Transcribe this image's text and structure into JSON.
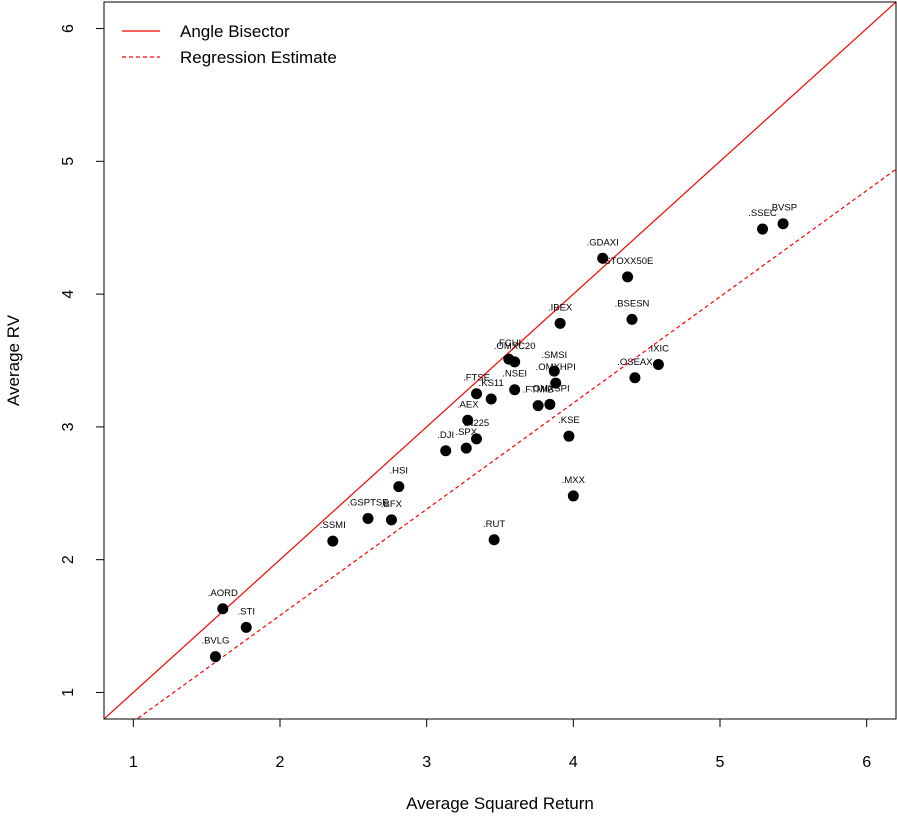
{
  "chart_data": {
    "type": "scatter",
    "title": "",
    "xlabel": "Average Squared Return",
    "ylabel": "Average RV",
    "xlim": [
      0.8,
      6.2
    ],
    "ylim": [
      0.8,
      6.2
    ],
    "xticks": [
      1,
      2,
      3,
      4,
      5,
      6
    ],
    "yticks": [
      1,
      2,
      3,
      4,
      5,
      6
    ],
    "grid": false,
    "legend_position": "top-left",
    "lines": [
      {
        "name": "Angle Bisector",
        "style": "solid",
        "color": "#ff0000",
        "intercept": 0,
        "slope": 1
      },
      {
        "name": "Regression Estimate",
        "style": "dashed",
        "color": "#ff0000",
        "intercept": -0.02,
        "slope": 0.8
      }
    ],
    "points": [
      {
        "label": ".AORD",
        "x": 1.61,
        "y": 1.63
      },
      {
        "label": ".STI",
        "x": 1.77,
        "y": 1.49
      },
      {
        "label": ".BVLG",
        "x": 1.56,
        "y": 1.27
      },
      {
        "label": ".SSMI",
        "x": 2.36,
        "y": 2.14
      },
      {
        "label": ".GSPTSE",
        "x": 2.6,
        "y": 2.31
      },
      {
        "label": ".BFX",
        "x": 2.76,
        "y": 2.3
      },
      {
        "label": ".HSI",
        "x": 2.81,
        "y": 2.55
      },
      {
        "label": ".DJI",
        "x": 3.13,
        "y": 2.82
      },
      {
        "label": ".SPX",
        "x": 3.27,
        "y": 2.84
      },
      {
        "label": ".N225",
        "x": 3.34,
        "y": 2.91
      },
      {
        "label": ".AEX",
        "x": 3.28,
        "y": 3.05
      },
      {
        "label": ".KS11",
        "x": 3.44,
        "y": 3.21
      },
      {
        "label": ".FTSE",
        "x": 3.34,
        "y": 3.25
      },
      {
        "label": ".NSEI",
        "x": 3.6,
        "y": 3.28
      },
      {
        "label": ".FTMIB",
        "x": 3.76,
        "y": 3.16
      },
      {
        "label": ".OMXSPI",
        "x": 3.84,
        "y": 3.17
      },
      {
        "label": ".OMXHPI",
        "x": 3.88,
        "y": 3.33
      },
      {
        "label": ".SMSI",
        "x": 3.87,
        "y": 3.42
      },
      {
        "label": ".FCHI",
        "x": 3.56,
        "y": 3.51
      },
      {
        "label": ".OMXC20",
        "x": 3.6,
        "y": 3.49
      },
      {
        "label": ".IBEX",
        "x": 3.91,
        "y": 3.78
      },
      {
        "label": ".KSE",
        "x": 3.97,
        "y": 2.93
      },
      {
        "label": ".MXX",
        "x": 4.0,
        "y": 2.48
      },
      {
        "label": ".RUT",
        "x": 3.46,
        "y": 2.15
      },
      {
        "label": ".GDAXI",
        "x": 4.2,
        "y": 4.27
      },
      {
        "label": ".STOXX50E",
        "x": 4.37,
        "y": 4.13
      },
      {
        "label": ".BSESN",
        "x": 4.4,
        "y": 3.81
      },
      {
        "label": ".OSEAX",
        "x": 4.42,
        "y": 3.37
      },
      {
        "label": ".IXIC",
        "x": 4.58,
        "y": 3.47
      },
      {
        "label": ".SSEC",
        "x": 5.29,
        "y": 4.49
      },
      {
        "label": ".BVSP",
        "x": 5.43,
        "y": 4.53
      }
    ]
  }
}
